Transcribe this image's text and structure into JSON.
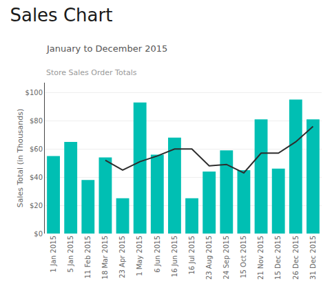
{
  "chart_data": {
    "type": "bar",
    "title": "Sales Chart",
    "subtitle": "January to December 2015",
    "annotations": [
      "Store Sales Order Totals"
    ],
    "ylabel": "Sales Total (in Thousands)",
    "categories": [
      "1 Jan 2015",
      "5 Jan 2015",
      "11 Feb 2015",
      "18 Mar 2015",
      "23 Apr 2015",
      "1 May 2015",
      "6 Jun 2015",
      "16 Jun 2015",
      "16 Jul 2015",
      "23 Aug 2015",
      "24 Sep 2015",
      "15 Oct 2015",
      "21 Nov 2015",
      "15 Dec 2015",
      "26 Dec 2015",
      "31 Dec 2015"
    ],
    "series": [
      {
        "type": "bar",
        "color": "#00BFB3",
        "values": [
          55,
          65,
          38,
          54,
          25,
          93,
          56,
          68,
          25,
          44,
          59,
          45,
          81,
          46,
          95,
          81
        ]
      },
      {
        "type": "line",
        "color": "#2d2d2d",
        "values": [
          null,
          null,
          null,
          52,
          45,
          51,
          55,
          60,
          60,
          48,
          49,
          43,
          57,
          57,
          65,
          76
        ]
      }
    ],
    "ylim": [
      0,
      107
    ],
    "yticks": [
      {
        "value": 0,
        "label": "$0"
      },
      {
        "value": 20,
        "label": "$20"
      },
      {
        "value": 40,
        "label": "$40"
      },
      {
        "value": 60,
        "label": "$60"
      },
      {
        "value": 80,
        "label": "$80"
      },
      {
        "value": 100,
        "label": "$100"
      }
    ],
    "grid": true
  }
}
